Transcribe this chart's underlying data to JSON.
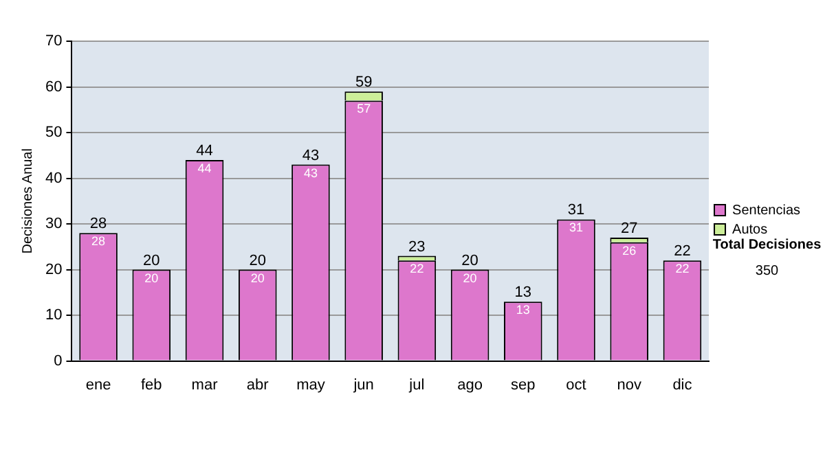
{
  "chart_data": {
    "type": "bar",
    "stacked": true,
    "ylabel": "Decisiones Anual",
    "categories": [
      "ene",
      "feb",
      "mar",
      "abr",
      "may",
      "jun",
      "jul",
      "ago",
      "sep",
      "oct",
      "nov",
      "dic"
    ],
    "series": [
      {
        "name": "Sentencias",
        "color": "#dd77cc",
        "values": [
          28,
          20,
          44,
          20,
          43,
          57,
          22,
          20,
          13,
          31,
          26,
          22
        ],
        "value_labels": [
          "28",
          "20",
          "44",
          "20",
          "43",
          "57",
          "22",
          "20",
          "13",
          "31",
          "26",
          "22"
        ]
      },
      {
        "name": "Autos",
        "color": "#ccee99",
        "values": [
          0,
          0,
          0,
          0,
          0,
          2,
          1,
          0,
          0,
          0,
          1,
          0
        ]
      }
    ],
    "totals": [
      "28",
      "20",
      "44",
      "20",
      "43",
      "59",
      "23",
      "20",
      "13",
      "31",
      "27",
      "22"
    ],
    "ylim": [
      0,
      70
    ],
    "yticks": [
      0,
      10,
      20,
      30,
      40,
      50,
      60,
      70
    ],
    "grid": "y",
    "legend": "right",
    "annotations": [
      "Total Decisiones",
      "350"
    ]
  }
}
